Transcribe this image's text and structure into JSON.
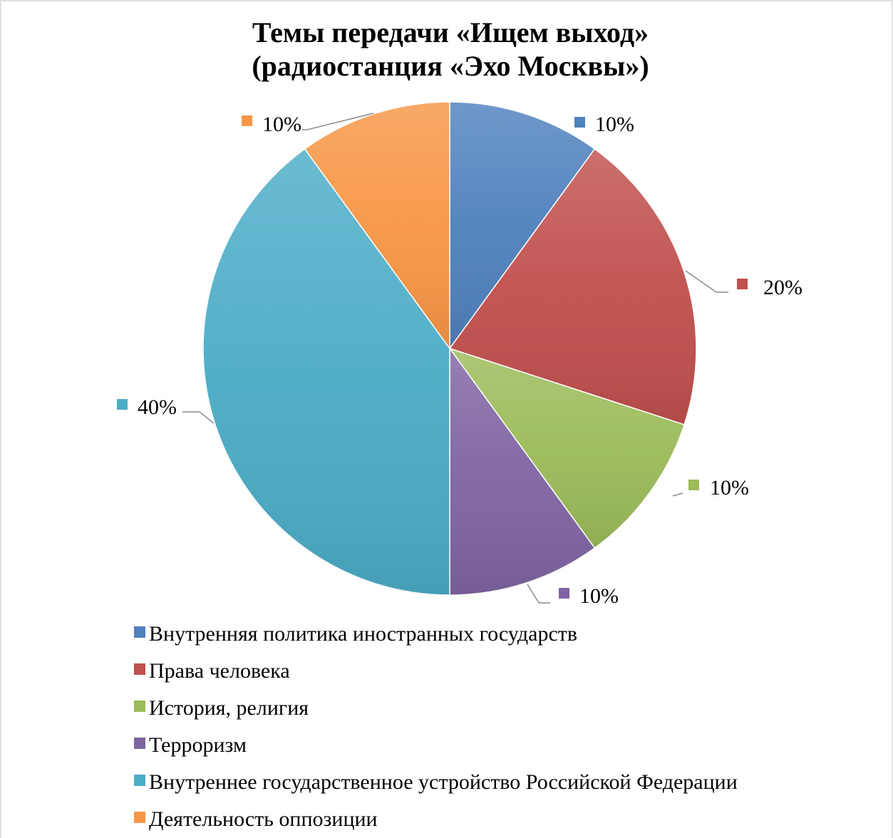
{
  "chart_data": {
    "type": "pie",
    "title_lines": [
      "Темы передачи «Ищем выход»",
      "(радиостанция «Эхо Москвы»)"
    ],
    "legend_position": "bottom",
    "slices": [
      {
        "name": "Внутренняя политика иностранных государств",
        "value": 10,
        "label": "10%",
        "color": "#4f81bd"
      },
      {
        "name": "Права человека",
        "value": 20,
        "label": "20%",
        "color": "#c0504d"
      },
      {
        "name": "История, религия",
        "value": 10,
        "label": "10%",
        "color": "#9bbb59"
      },
      {
        "name": "Терроризм",
        "value": 10,
        "label": "10%",
        "color": "#8064a2"
      },
      {
        "name": "Внутреннее государственное устройство Российской Федерации",
        "value": 40,
        "label": "40%",
        "color": "#4bacc6"
      },
      {
        "name": "Деятельность оппозиции",
        "value": 10,
        "label": "10%",
        "color": "#f79646"
      }
    ]
  }
}
